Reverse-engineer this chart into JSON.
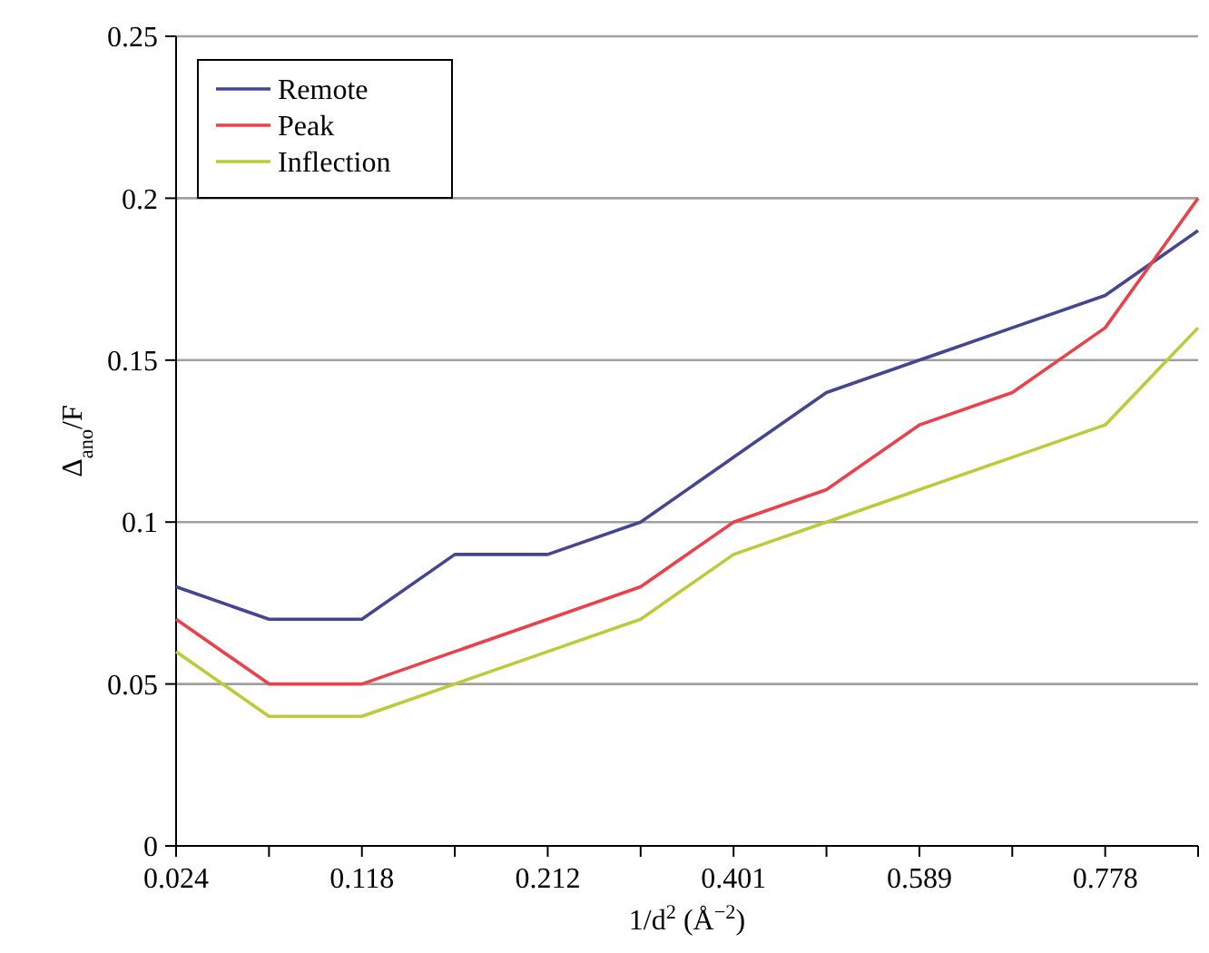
{
  "chart_data": {
    "type": "line",
    "xlabel": "1/d$^{2}$ (Å$^{−2}$)",
    "ylabel": "Δ$_{ano}$/F",
    "categories": [
      "0.024",
      null,
      "0.118",
      null,
      "0.212",
      null,
      "0.401",
      null,
      "0.589",
      null,
      "0.778",
      null
    ],
    "series": [
      {
        "name": "Remote",
        "color": "#46468f",
        "values": [
          0.08,
          0.07,
          0.07,
          0.09,
          0.09,
          0.1,
          0.12,
          0.14,
          0.15,
          0.16,
          0.17,
          0.19
        ]
      },
      {
        "name": "Peak",
        "color": "#e8434b",
        "values": [
          0.07,
          0.05,
          0.05,
          0.06,
          0.07,
          0.08,
          0.1,
          0.11,
          0.13,
          0.14,
          0.16,
          0.2
        ]
      },
      {
        "name": "Inflection",
        "color": "#bccb3a",
        "values": [
          0.06,
          0.04,
          0.04,
          0.05,
          0.06,
          0.07,
          0.09,
          0.1,
          0.11,
          0.12,
          0.13,
          0.16
        ]
      }
    ],
    "ylim": [
      0,
      0.25
    ],
    "yticks": [
      0,
      0.05,
      0.1,
      0.15,
      0.2,
      0.25
    ],
    "grid": "y",
    "legend": "top left",
    "line_style": "solid"
  }
}
